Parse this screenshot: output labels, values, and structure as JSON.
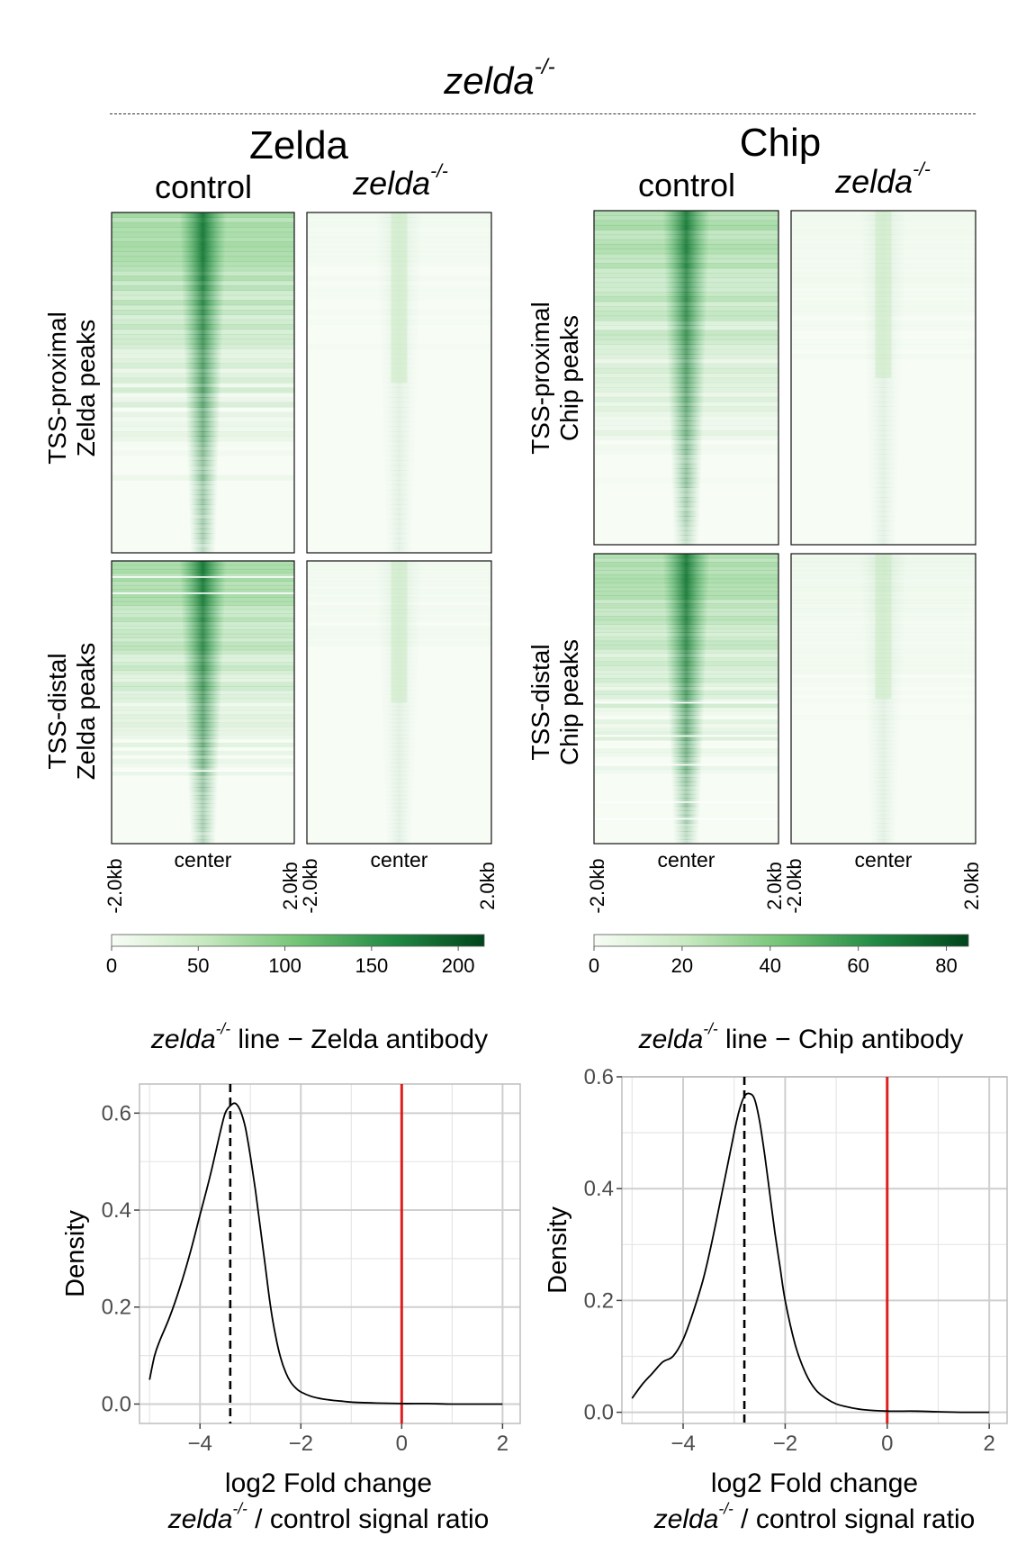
{
  "figure": {
    "title": "zelda",
    "title_sup": "-/-",
    "groups": [
      {
        "name": "Zelda",
        "col_control": "control",
        "col_mutant": "zelda",
        "col_mutant_sup": "-/-",
        "row1_label_1": "TSS-proximal",
        "row1_label_2": "Zelda peaks",
        "row2_label_1": "TSS-distal",
        "row2_label_2": "Zelda peaks",
        "axis_left": "-2.0kb",
        "axis_center": "center",
        "axis_right": "2.0kb",
        "scale_ticks": [
          "0",
          "50",
          "100",
          "150",
          "200"
        ],
        "scale_max": 215
      },
      {
        "name": "Chip",
        "col_control": "control",
        "col_mutant": "zelda",
        "col_mutant_sup": "-/-",
        "row1_label_1": "TSS-proximal",
        "row1_label_2": "Chip peaks",
        "row2_label_1": "TSS-distal",
        "row2_label_2": "Chip peaks",
        "axis_left": "-2.0kb",
        "axis_center": "center",
        "axis_right": "2.0kb",
        "scale_ticks": [
          "0",
          "20",
          "40",
          "60",
          "80"
        ],
        "scale_max": 85
      }
    ]
  },
  "colors": {
    "heat_low": "#f7fcf5",
    "heat_mid": "#41ab5d",
    "heat_high": "#00441b",
    "grid": "#cfcfcf",
    "red_line": "#dd1f1f"
  },
  "chart_data": [
    {
      "type": "line",
      "title_italic": "zelda",
      "title_sup": "-/-",
      "title_rest": " line − Zelda antibody",
      "ylabel": "Density",
      "xlabel_1": "log2 Fold change",
      "xlabel_2_italic": "zelda",
      "xlabel_2_sup": "-/-",
      "xlabel_2_rest": " / control signal ratio",
      "xlim": [
        -5.2,
        2.35
      ],
      "ylim": [
        -0.04,
        0.66
      ],
      "x_ticks": [
        -4,
        -2,
        0,
        2
      ],
      "x_tick_labels": [
        "−4",
        "−2",
        "0",
        "2"
      ],
      "y_ticks": [
        0.0,
        0.2,
        0.4,
        0.6
      ],
      "y_tick_labels": [
        "0.0",
        "0.2",
        "0.4",
        "0.6"
      ],
      "median_dashed_x": -3.4,
      "reference_red_x": 0,
      "series": [
        {
          "name": "density",
          "x": [
            -5.0,
            -4.9,
            -4.8,
            -4.6,
            -4.4,
            -4.2,
            -4.0,
            -3.8,
            -3.6,
            -3.5,
            -3.4,
            -3.3,
            -3.2,
            -3.1,
            -3.0,
            -2.9,
            -2.8,
            -2.7,
            -2.6,
            -2.5,
            -2.4,
            -2.3,
            -2.2,
            -2.1,
            -2.0,
            -1.8,
            -1.6,
            -1.4,
            -1.2,
            -1.0,
            -0.5,
            0.0,
            0.5,
            1.0,
            1.5,
            2.0
          ],
          "y": [
            0.05,
            0.1,
            0.13,
            0.18,
            0.24,
            0.31,
            0.39,
            0.47,
            0.56,
            0.6,
            0.615,
            0.62,
            0.605,
            0.57,
            0.51,
            0.44,
            0.36,
            0.28,
            0.2,
            0.14,
            0.095,
            0.065,
            0.045,
            0.033,
            0.025,
            0.016,
            0.011,
            0.008,
            0.006,
            0.004,
            0.002,
            0.001,
            0.001,
            0.0,
            0.0,
            0.0
          ]
        }
      ]
    },
    {
      "type": "line",
      "title_italic": "zelda",
      "title_sup": "-/-",
      "title_rest": " line − Chip antibody",
      "ylabel": "Density",
      "xlabel_1": "log2 Fold change",
      "xlabel_2_italic": "zelda",
      "xlabel_2_sup": "-/-",
      "xlabel_2_rest": " / control signal ratio",
      "xlim": [
        -5.2,
        2.35
      ],
      "ylim": [
        -0.02,
        0.6
      ],
      "x_ticks": [
        -4,
        -2,
        0,
        2
      ],
      "x_tick_labels": [
        "−4",
        "−2",
        "0",
        "2"
      ],
      "y_ticks": [
        0.0,
        0.2,
        0.4,
        0.6
      ],
      "y_tick_labels": [
        "0.0",
        "0.2",
        "0.4",
        "0.6"
      ],
      "median_dashed_x": -2.8,
      "reference_red_x": 0,
      "series": [
        {
          "name": "density",
          "x": [
            -5.0,
            -4.8,
            -4.6,
            -4.4,
            -4.2,
            -4.0,
            -3.8,
            -3.6,
            -3.4,
            -3.2,
            -3.0,
            -2.9,
            -2.8,
            -2.7,
            -2.6,
            -2.5,
            -2.4,
            -2.3,
            -2.2,
            -2.1,
            -2.0,
            -1.8,
            -1.6,
            -1.4,
            -1.2,
            -1.0,
            -0.8,
            -0.5,
            0.0,
            0.5,
            1.0,
            1.5,
            2.0
          ],
          "y": [
            0.025,
            0.05,
            0.07,
            0.09,
            0.1,
            0.13,
            0.18,
            0.24,
            0.32,
            0.41,
            0.5,
            0.54,
            0.565,
            0.57,
            0.56,
            0.52,
            0.46,
            0.39,
            0.32,
            0.26,
            0.2,
            0.12,
            0.07,
            0.04,
            0.025,
            0.015,
            0.01,
            0.005,
            0.002,
            0.002,
            0.001,
            0.0,
            0.0
          ]
        }
      ]
    }
  ]
}
